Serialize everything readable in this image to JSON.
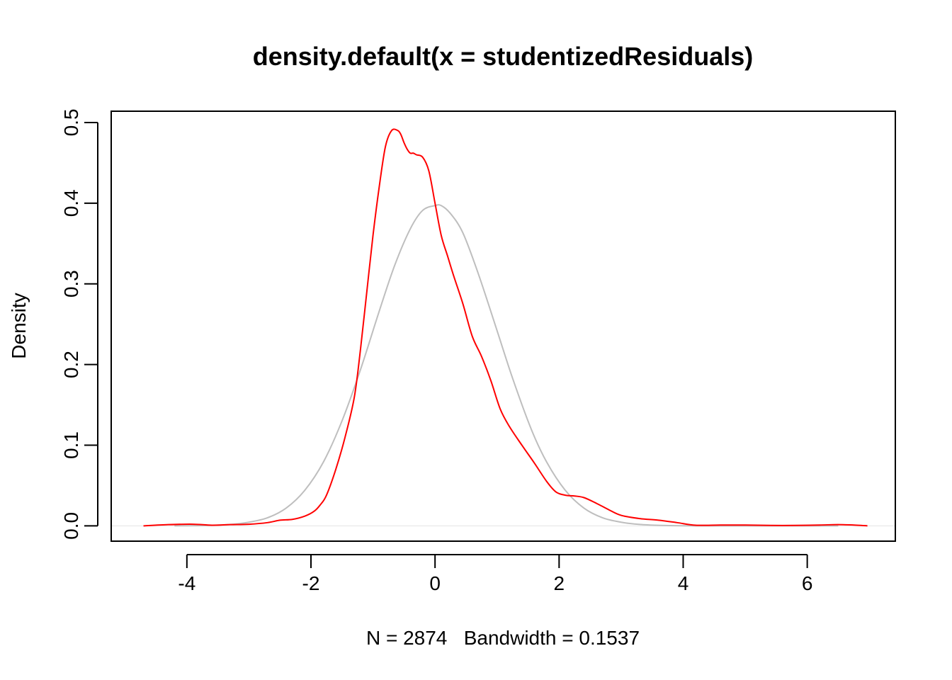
{
  "chart_data": {
    "type": "line",
    "title": "density.default(x = studentizedResiduals)",
    "xlabel": "N = 2874   Bandwidth = 0.1537",
    "ylabel": "Density",
    "xlim": [
      -5.22,
      7.42
    ],
    "ylim": [
      -0.019,
      0.514
    ],
    "x_ticks": [
      -4,
      -2,
      0,
      2,
      4,
      6
    ],
    "x_tick_labels": [
      "-4",
      "-2",
      "0",
      "2",
      "4",
      "6"
    ],
    "y_ticks": [
      0.0,
      0.1,
      0.2,
      0.3,
      0.4,
      0.5
    ],
    "y_tick_labels": [
      "0.0",
      "0.1",
      "0.2",
      "0.3",
      "0.4",
      "0.5"
    ],
    "baseline_y": 0,
    "grid": false,
    "series": [
      {
        "color": "#ff0000",
        "x": [
          -4.7,
          -4.3,
          -3.9,
          -3.6,
          -3.3,
          -3.0,
          -2.7,
          -2.5,
          -2.3,
          -2.1,
          -1.95,
          -1.85,
          -1.75,
          -1.6,
          -1.45,
          -1.3,
          -1.2,
          -1.1,
          -1.0,
          -0.9,
          -0.8,
          -0.7,
          -0.6,
          -0.55,
          -0.5,
          -0.45,
          -0.4,
          -0.35,
          -0.3,
          -0.2,
          -0.1,
          0.0,
          0.1,
          0.2,
          0.3,
          0.45,
          0.6,
          0.75,
          0.9,
          1.05,
          1.2,
          1.4,
          1.6,
          1.8,
          1.95,
          2.1,
          2.25,
          2.4,
          2.6,
          2.8,
          3.0,
          3.3,
          3.6,
          3.9,
          4.2,
          4.6,
          5.0,
          5.4,
          5.8,
          6.2,
          6.5,
          6.8,
          6.97
        ],
        "y": [
          0.0,
          0.0015,
          0.002,
          0.0008,
          0.0015,
          0.002,
          0.004,
          0.007,
          0.008,
          0.012,
          0.018,
          0.026,
          0.038,
          0.07,
          0.11,
          0.16,
          0.22,
          0.29,
          0.36,
          0.42,
          0.47,
          0.49,
          0.49,
          0.485,
          0.475,
          0.467,
          0.462,
          0.462,
          0.46,
          0.457,
          0.44,
          0.4,
          0.36,
          0.335,
          0.31,
          0.275,
          0.235,
          0.21,
          0.18,
          0.145,
          0.123,
          0.1,
          0.078,
          0.055,
          0.042,
          0.038,
          0.037,
          0.035,
          0.028,
          0.02,
          0.013,
          0.009,
          0.007,
          0.004,
          0.0008,
          0.001,
          0.001,
          0.0005,
          0.0005,
          0.001,
          0.0015,
          0.0008,
          0.0
        ]
      },
      {
        "color": "#bebebe",
        "x": [
          -4.2,
          -3.9,
          -3.6,
          -3.3,
          -3.0,
          -2.7,
          -2.4,
          -2.1,
          -1.8,
          -1.5,
          -1.2,
          -0.9,
          -0.65,
          -0.4,
          -0.2,
          0.0,
          0.1,
          0.25,
          0.45,
          0.7,
          1.0,
          1.25,
          1.55,
          1.8,
          2.1,
          2.4,
          2.7,
          3.0,
          3.3,
          3.6,
          4.0,
          4.5,
          5.0,
          5.5,
          6.0,
          6.5
        ],
        "y": [
          0.0,
          0.0002,
          0.0006,
          0.0017,
          0.0045,
          0.01,
          0.022,
          0.044,
          0.079,
          0.13,
          0.194,
          0.266,
          0.323,
          0.368,
          0.391,
          0.397,
          0.397,
          0.387,
          0.363,
          0.312,
          0.242,
          0.183,
          0.12,
          0.079,
          0.044,
          0.022,
          0.01,
          0.0045,
          0.0017,
          0.0006,
          0.0001,
          0.0,
          0.0,
          0.0,
          0.0,
          0.0
        ]
      }
    ]
  }
}
